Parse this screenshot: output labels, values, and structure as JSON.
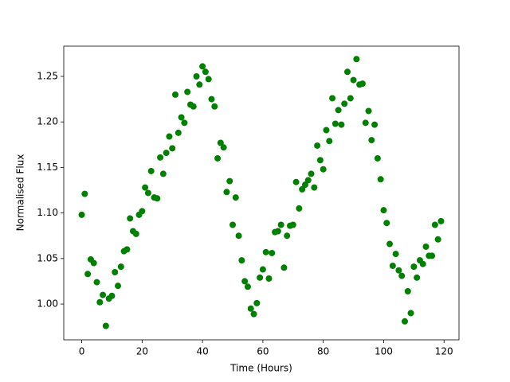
{
  "chart_data": {
    "type": "scatter",
    "xlabel": "Time (Hours)",
    "ylabel": "Normalised Flux",
    "color": "#008000",
    "x": [
      0,
      1,
      2,
      3,
      4,
      5,
      6,
      7,
      8,
      9,
      10,
      11,
      12,
      13,
      14,
      15,
      16,
      17,
      18,
      19,
      20,
      21,
      22,
      23,
      24,
      25,
      26,
      27,
      28,
      29,
      30,
      31,
      32,
      33,
      34,
      35,
      36,
      37,
      38,
      39,
      40,
      41,
      42,
      43,
      44,
      45,
      46,
      47,
      48,
      49,
      50,
      51,
      52,
      53,
      54,
      55,
      56,
      57,
      58,
      59,
      60,
      61,
      62,
      63,
      64,
      65,
      66,
      67,
      68,
      69,
      70,
      71,
      72,
      73,
      74,
      75,
      76,
      77,
      78,
      79,
      80,
      81,
      82,
      83,
      84,
      85,
      86,
      87,
      88,
      89,
      90,
      91,
      92,
      93,
      94,
      95,
      96,
      97,
      98,
      99,
      100,
      101,
      102,
      103,
      104,
      105,
      106,
      107,
      108,
      109,
      110,
      111,
      112,
      113,
      114,
      115,
      116,
      117,
      118,
      119
    ],
    "values": [
      1.098,
      1.121,
      1.033,
      1.049,
      1.045,
      1.024,
      1.002,
      1.01,
      0.976,
      1.006,
      1.009,
      1.035,
      1.02,
      1.041,
      1.058,
      1.06,
      1.094,
      1.08,
      1.077,
      1.098,
      1.102,
      1.128,
      1.122,
      1.146,
      1.117,
      1.116,
      1.161,
      1.143,
      1.166,
      1.184,
      1.171,
      1.23,
      1.188,
      1.205,
      1.199,
      1.233,
      1.219,
      1.217,
      1.25,
      1.241,
      1.261,
      1.255,
      1.247,
      1.225,
      1.217,
      1.16,
      1.177,
      1.172,
      1.123,
      1.135,
      1.087,
      1.117,
      1.075,
      1.048,
      1.025,
      1.019,
      0.995,
      0.989,
      1.001,
      1.029,
      1.038,
      1.057,
      1.028,
      1.056,
      1.079,
      1.08,
      1.087,
      1.04,
      1.075,
      1.086,
      1.087,
      1.134,
      1.105,
      1.126,
      1.131,
      1.136,
      1.143,
      1.128,
      1.174,
      1.158,
      1.148,
      1.191,
      1.179,
      1.226,
      1.198,
      1.213,
      1.197,
      1.22,
      1.255,
      1.226,
      1.246,
      1.269,
      1.241,
      1.242,
      1.199,
      1.212,
      1.18,
      1.197,
      1.16,
      1.137,
      1.103,
      1.089,
      1.066,
      1.042,
      1.055,
      1.037,
      1.031,
      0.981,
      1.014,
      0.99,
      1.041,
      1.029,
      1.048,
      1.044,
      1.063,
      1.053,
      1.053,
      1.087,
      1.071,
      1.091
    ],
    "xlim": [
      -5.95,
      124.95
    ],
    "ylim": [
      0.9607,
      1.2832
    ],
    "xticks": [
      0,
      20,
      40,
      60,
      80,
      100,
      120
    ],
    "yticks": [
      {
        "value": 1,
        "label": "1.00"
      },
      1.05,
      {
        "value": 1.1,
        "label": "1.10"
      },
      1.15,
      {
        "value": 1.2,
        "label": "1.20"
      },
      1.25
    ]
  }
}
